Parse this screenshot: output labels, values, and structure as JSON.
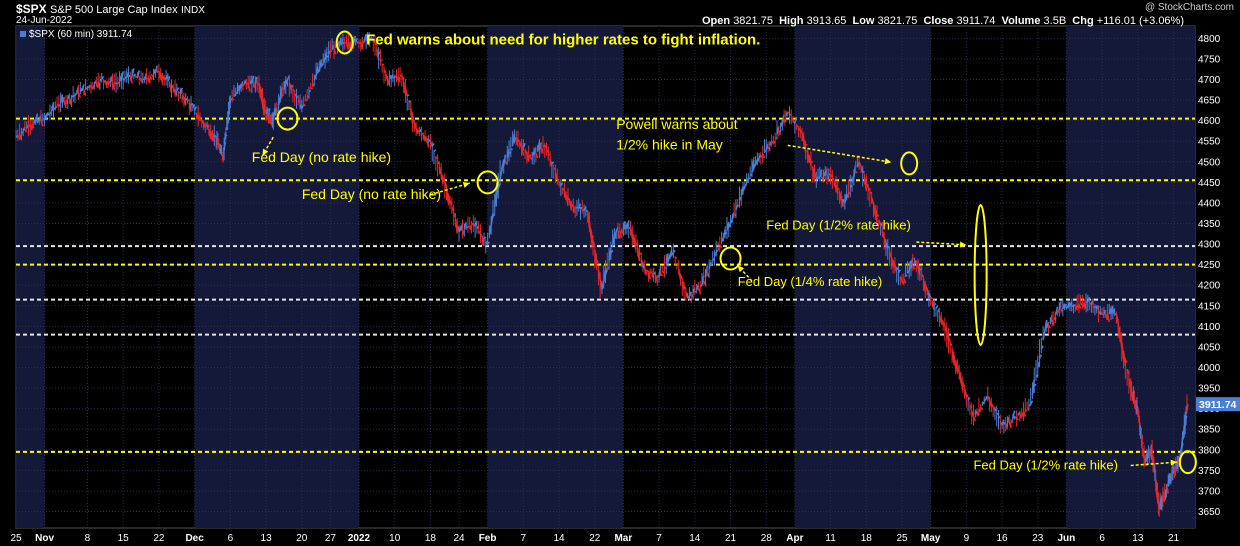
{
  "header": {
    "symbol": "$SPX",
    "name": "S&P 500 Large Cap Index",
    "exchange": "INDX",
    "date": "24-Jun-2022",
    "watermark": "@ StockCharts.com",
    "legend": "$SPX (60 min) 3911.74",
    "open_label": "Open",
    "open": "3821.75",
    "high_label": "High",
    "high": "3913.65",
    "low_label": "Low",
    "low": "3821.75",
    "close_label": "Close",
    "close": "3911.74",
    "volume_label": "Volume",
    "volume": "3.5B",
    "chg_label": "Chg",
    "chg": "+116.01 (+3.06%)"
  },
  "colors": {
    "up": "#4a7fd6",
    "down": "#e8262a",
    "yellow": "#ffff00",
    "white_line": "#e6e6e6",
    "band": "#14193a"
  },
  "chart_data": {
    "type": "line",
    "title": "$SPX (60 min)",
    "ylim": [
      3610,
      4830
    ],
    "y_ticks": [
      3650,
      3700,
      3750,
      3800,
      3850,
      3900,
      3950,
      4000,
      4050,
      4100,
      4150,
      4200,
      4250,
      4300,
      4350,
      4400,
      4450,
      4500,
      4550,
      4600,
      4650,
      4700,
      4750,
      4800
    ],
    "last_value": "3911.74",
    "x_ticks": [
      "25",
      "Nov",
      "8",
      "15",
      "22",
      "Dec",
      "6",
      "13",
      "20",
      "27",
      "2022",
      "10",
      "18",
      "24",
      "Feb",
      "7",
      "14",
      "22",
      "Mar",
      "7",
      "14",
      "21",
      "28",
      "Apr",
      "11",
      "18",
      "25",
      "May",
      "9",
      "16",
      "23",
      "Jun",
      "6",
      "13",
      "21"
    ],
    "x_tick_sessions": [
      0,
      4,
      10,
      15,
      20,
      25,
      30,
      35,
      40,
      44,
      48,
      53,
      58,
      62,
      66,
      71,
      76,
      81,
      85,
      90,
      95,
      100,
      105,
      109,
      114,
      119,
      124,
      128,
      133,
      138,
      143,
      147,
      152,
      157,
      162
    ],
    "bands": [
      [
        0,
        4
      ],
      [
        25,
        48
      ],
      [
        66,
        85
      ],
      [
        109,
        128
      ],
      [
        147,
        165
      ]
    ],
    "x_values": [
      0,
      2,
      4,
      6,
      8,
      10,
      12,
      14,
      16,
      18,
      20,
      22,
      24,
      26,
      28,
      29,
      30,
      32,
      34,
      35,
      36,
      38,
      40,
      42,
      44,
      46,
      48,
      50,
      52,
      54,
      56,
      58,
      60,
      62,
      64,
      66,
      68,
      70,
      72,
      74,
      76,
      78,
      80,
      82,
      84,
      86,
      88,
      90,
      92,
      94,
      96,
      98,
      100,
      102,
      104,
      106,
      108,
      110,
      112,
      114,
      116,
      118,
      120,
      122,
      124,
      126,
      128,
      130,
      132,
      134,
      136,
      138,
      140,
      142,
      144,
      146,
      148,
      150,
      152,
      154,
      156,
      157,
      158,
      159,
      160,
      161,
      162,
      163,
      164
    ],
    "y_values": [
      4560,
      4590,
      4605,
      4640,
      4660,
      4680,
      4700,
      4690,
      4710,
      4700,
      4720,
      4680,
      4650,
      4600,
      4560,
      4510,
      4650,
      4690,
      4690,
      4620,
      4600,
      4700,
      4630,
      4710,
      4770,
      4790,
      4790,
      4800,
      4700,
      4710,
      4580,
      4550,
      4450,
      4330,
      4350,
      4300,
      4480,
      4560,
      4510,
      4540,
      4450,
      4390,
      4380,
      4190,
      4330,
      4340,
      4240,
      4220,
      4280,
      4170,
      4200,
      4280,
      4350,
      4440,
      4510,
      4550,
      4620,
      4570,
      4460,
      4470,
      4400,
      4500,
      4400,
      4290,
      4210,
      4260,
      4170,
      4100,
      3990,
      3880,
      3930,
      3860,
      3880,
      3910,
      4090,
      4140,
      4150,
      4160,
      4130,
      4130,
      3950,
      3900,
      3770,
      3800,
      3660,
      3700,
      3750,
      3780,
      3911
    ]
  },
  "levels": [
    {
      "value": 4605,
      "style": "yellow"
    },
    {
      "value": 4455,
      "style": "yellow"
    },
    {
      "value": 4295,
      "style": "white"
    },
    {
      "value": 4250,
      "style": "yellow"
    },
    {
      "value": 4165,
      "style": "white"
    },
    {
      "value": 4080,
      "style": "white"
    },
    {
      "value": 3795,
      "style": "yellow"
    }
  ],
  "annotations": [
    {
      "text": "Fed warns about need for higher rates to fight inflation.",
      "x": 46,
      "y": 4790,
      "rx": 8,
      "ry": 11,
      "arrow": null,
      "tx": 49,
      "ty": 4785,
      "bold": true,
      "size": 15
    },
    {
      "text": "Fed Day (no rate hike)",
      "x": 38,
      "y": 4605,
      "rx": 10,
      "ry": 11,
      "arrow": [
        [
          36,
          4560
        ],
        [
          34.5,
          4515
        ]
      ],
      "tx": 33,
      "ty": 4500,
      "bold": false,
      "size": 14
    },
    {
      "text": "Fed Day (no rate hike)",
      "x": 66,
      "y": 4450,
      "rx": 10,
      "ry": 11,
      "arrow": [
        [
          58,
          4420
        ],
        [
          63.5,
          4448
        ]
      ],
      "tx": 40,
      "ty": 4410,
      "bold": false,
      "size": 14
    },
    {
      "text": "Powell warns about",
      "x": 125,
      "y": 4496,
      "rx": 8,
      "ry": 11,
      "arrow": [
        [
          108,
          4540
        ],
        [
          122.5,
          4499
        ]
      ],
      "tx": 84,
      "ty": 4580,
      "bold": false,
      "size": 14
    },
    {
      "text": "1/2% hike in May",
      "x": null,
      "y": null,
      "rx": 0,
      "ry": 0,
      "arrow": null,
      "tx": 84,
      "ty": 4530,
      "bold": false,
      "size": 14
    },
    {
      "text": "Fed Day (1/4% rate hike)",
      "x": 100,
      "y": 4265,
      "rx": 10,
      "ry": 11,
      "arrow": [
        [
          103,
          4210
        ],
        [
          101,
          4248
        ]
      ],
      "tx": 101,
      "ty": 4198,
      "bold": false,
      "size": 13
    },
    {
      "text": "Fed Day (1/2% rate hike)",
      "x": 135,
      "y": 4225,
      "rx": 6,
      "ry": 70,
      "arrow": [
        [
          126,
          4305
        ],
        [
          133,
          4298
        ]
      ],
      "tx": 105,
      "ty": 4335,
      "bold": false,
      "size": 13
    },
    {
      "text": "Fed Day (1/2% rate hike)",
      "x": 164,
      "y": 3770,
      "rx": 8,
      "ry": 11,
      "arrow": [
        [
          156,
          3762
        ],
        [
          162.5,
          3770
        ]
      ],
      "tx": 134,
      "ty": 3752,
      "bold": false,
      "size": 13
    }
  ]
}
